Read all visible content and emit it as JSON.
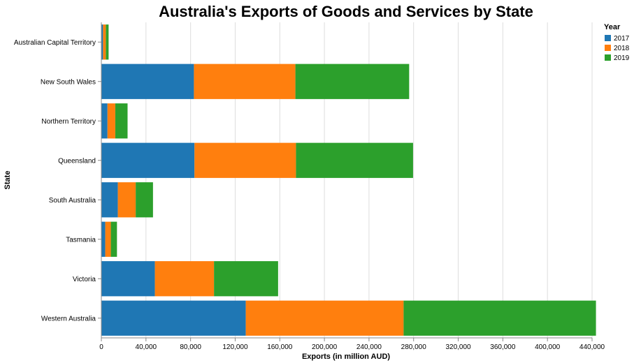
{
  "chart_data": {
    "type": "bar",
    "orientation": "horizontal",
    "stacked": true,
    "title": "Australia's Exports of Goods and Services by State",
    "xlabel": "Exports (in million AUD)",
    "ylabel": "State",
    "xlim": [
      0,
      440000
    ],
    "x_ticks": [
      "0",
      "40,000",
      "80,000",
      "120,000",
      "160,000",
      "200,000",
      "240,000",
      "280,000",
      "320,000",
      "360,000",
      "400,000",
      "440,000"
    ],
    "x_tick_values": [
      0,
      40000,
      80000,
      120000,
      160000,
      200000,
      240000,
      280000,
      320000,
      360000,
      400000,
      440000
    ],
    "grid": true,
    "legend_placement": "top-right",
    "legend_title": "Year",
    "categories": [
      "Australian Capital Territory",
      "New South Wales",
      "Northern Territory",
      "Queensland",
      "South Australia",
      "Tasmania",
      "Victoria",
      "Western Australia"
    ],
    "series": [
      {
        "name": "2017",
        "color": "#1f77b4",
        "values": [
          1500,
          83000,
          5500,
          83500,
          14800,
          3500,
          48000,
          129500
        ]
      },
      {
        "name": "2018",
        "color": "#ff7f0e",
        "values": [
          2500,
          91000,
          7000,
          91000,
          16000,
          5000,
          53000,
          141500
        ]
      },
      {
        "name": "2019",
        "color": "#2ca02c",
        "values": [
          2500,
          102000,
          11000,
          105000,
          15500,
          5500,
          57500,
          172500
        ]
      }
    ]
  }
}
